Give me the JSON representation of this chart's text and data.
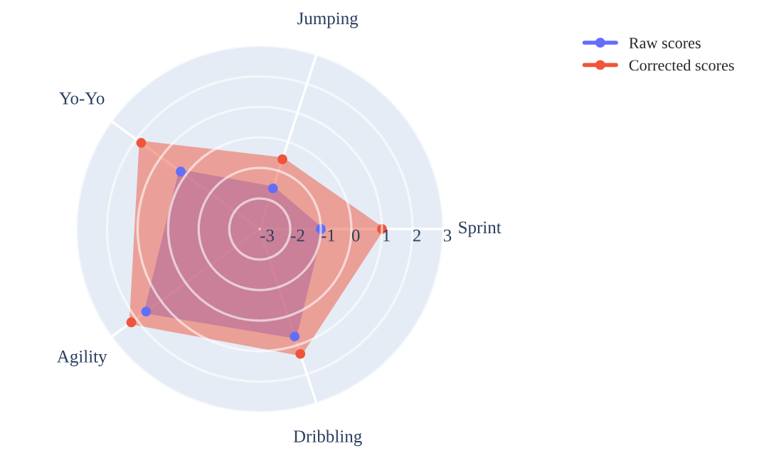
{
  "chart_data": {
    "type": "radar",
    "categories": [
      "Jumping",
      "Sprint",
      "Dribbling",
      "Agility",
      "Yo-Yo"
    ],
    "series": [
      {
        "name": "Raw scores",
        "color": "#636efa",
        "values": [
          -1.6,
          -1,
          0.7,
          1.6,
          0.2
        ]
      },
      {
        "name": "Corrected scores",
        "color": "#ef553b",
        "values": [
          -0.6,
          1,
          1.3,
          2.2,
          1.8
        ]
      }
    ],
    "ylim": [
      -3,
      3
    ],
    "yticks": [
      -3,
      -2,
      -1,
      0,
      1,
      2,
      3
    ],
    "grid": true,
    "legend": "top right",
    "marker": "circle",
    "line_style": "solid"
  }
}
